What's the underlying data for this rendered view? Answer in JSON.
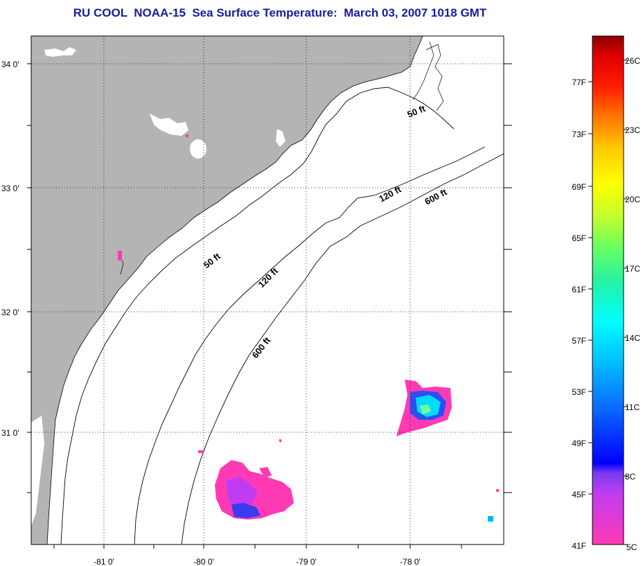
{
  "title": "RU COOL  NOAA-15  Sea Surface Temperature:  March 03, 2007 1018 GMT",
  "map": {
    "lat_labels": [
      "34 0'",
      "33 0'",
      "32 0'",
      "31 0'"
    ],
    "lon_labels": [
      "-81 0'",
      "-80 0'",
      "-79 0'",
      "-78 0'"
    ],
    "depth_labels": [
      "50 ft",
      "120 ft",
      "600 ft",
      "50 ft",
      "120 ft",
      "600 ft"
    ],
    "colors": {
      "land": "#b4b4b4",
      "cloud_mask": "#ffffff",
      "ocean": "#ffffff"
    }
  },
  "colorbar": {
    "fahrenheit_labels": [
      "77F",
      "73F",
      "69F",
      "65F",
      "61F",
      "57F",
      "53F",
      "49F",
      "45F",
      "41F"
    ],
    "celsius_labels": [
      "26C",
      "23C",
      "20C",
      "17C",
      "14C",
      "11C",
      "8C",
      "5C"
    ],
    "range_f": [
      41,
      80
    ],
    "range_c": [
      5,
      27
    ]
  }
}
